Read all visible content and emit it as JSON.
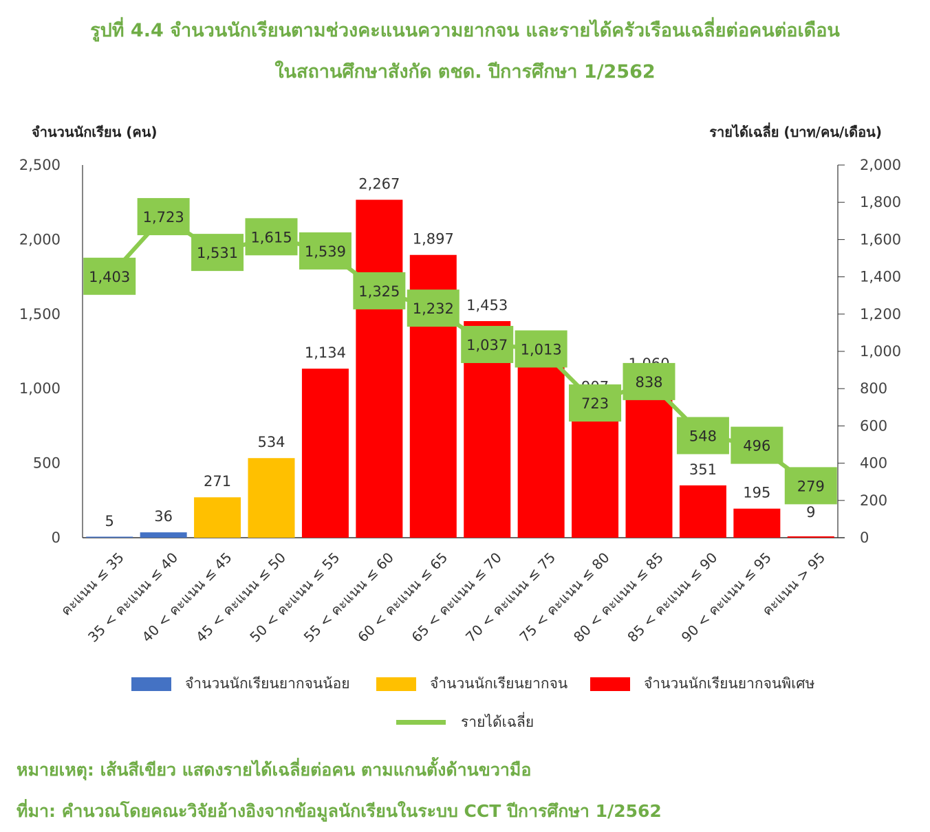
{
  "title_line1": "รูปที่ 4.4 จำนวนนักเรียนตามช่วงคะแนนความยากจน และรายได้ครัวเรือนเฉลี่ยต่อคนต่อเดือน",
  "title_line2": "ในสถานศึกษาสังกัด ตชด. ปีการศึกษา 1/2562",
  "note": "หมายเหตุ: เส้นสีเขียว แสดงรายได้เฉลี่ยต่อคน ตามแกนตั้งด้านขวามือ",
  "source": "ที่มา: คำนวณโดยคณะวิจัยอ้างอิงจากข้อมูลนักเรียนในระบบ CCT ปีการศึกษา 1/2562",
  "chart_data": {
    "type": "bar",
    "categories": [
      "คะแนน ≤ 35",
      "35 < คะแนน ≤ 40",
      "40 < คะแนน ≤ 45",
      "45 < คะแนน ≤ 50",
      "50 < คะแนน ≤ 55",
      "55 < คะแนน ≤ 60",
      "60 < คะแนน ≤ 65",
      "65 < คะแนน ≤ 70",
      "70 < คะแนน ≤ 75",
      "75 < คะแนน ≤ 80",
      "80 < คะแนน ≤ 85",
      "85 < คะแนน ≤ 90",
      "90 < คะแนน ≤ 95",
      "คะแนน > 95"
    ],
    "bars": {
      "values": [
        5,
        36,
        271,
        534,
        1134,
        2267,
        1897,
        1453,
        1223,
        907,
        1060,
        351,
        195,
        9
      ],
      "labels": [
        "5",
        "36",
        "271",
        "534",
        "1,134",
        "2,267",
        "1,897",
        "1,453",
        "1,223",
        "907",
        "1,060",
        "351",
        "195",
        "9"
      ],
      "group": [
        "low",
        "low",
        "poor",
        "poor",
        "extreme",
        "extreme",
        "extreme",
        "extreme",
        "extreme",
        "extreme",
        "extreme",
        "extreme",
        "extreme",
        "extreme"
      ]
    },
    "line": {
      "name": "รายได้เฉลี่ย",
      "values": [
        1403,
        1723,
        1531,
        1615,
        1539,
        1325,
        1232,
        1037,
        1013,
        723,
        838,
        548,
        496,
        279
      ],
      "labels": [
        "1,403",
        "1,723",
        "1,531",
        "1,615",
        "1,539",
        "1,325",
        "1,232",
        "1,037",
        "1,013",
        "723",
        "838",
        "548",
        "496",
        "279"
      ]
    },
    "legend": [
      {
        "key": "low",
        "name": "จำนวนนักเรียนยากจนน้อย",
        "color": "#4472C4"
      },
      {
        "key": "poor",
        "name": "จำนวนนักเรียนยากจน",
        "color": "#FFC000"
      },
      {
        "key": "extreme",
        "name": "จำนวนนักเรียนยากจนพิเศษ",
        "color": "#FF0000"
      }
    ],
    "line_color": "#8CCB4E",
    "y_left": {
      "label": "จำนวนนักเรียน (คน)",
      "min": 0,
      "max": 2500,
      "ticks": [
        "0",
        "500",
        "1,000",
        "1,500",
        "2,000",
        "2,500"
      ]
    },
    "y_right": {
      "label": "รายได้เฉลี่ย (บาท/คน/เดือน)",
      "min": 0,
      "max": 2000,
      "ticks": [
        "0",
        "200",
        "400",
        "600",
        "800",
        "1,000",
        "1,200",
        "1,400",
        "1,600",
        "1,800",
        "2,000"
      ]
    }
  }
}
